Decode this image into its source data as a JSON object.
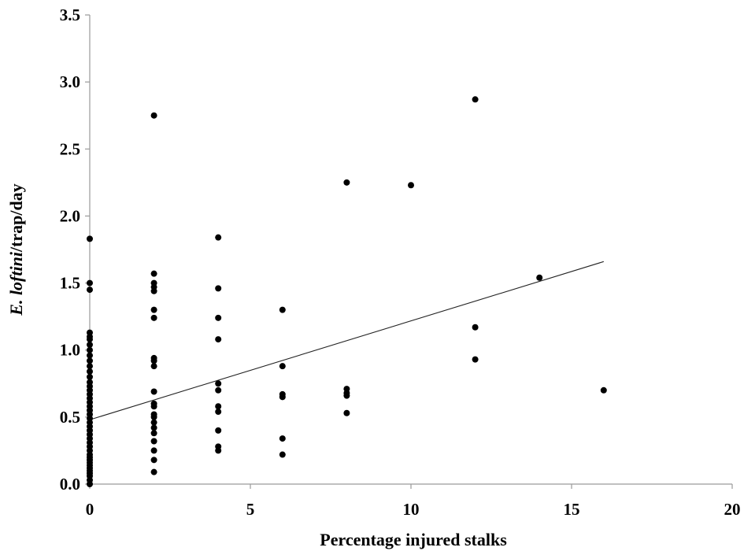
{
  "chart_data": {
    "type": "scatter",
    "title": "",
    "xlabel": "Percentage injured stalks",
    "ylabel": {
      "italic": "E. loftini",
      "rest": "/trap/day"
    },
    "xlim": [
      0,
      20
    ],
    "ylim": [
      0,
      3.5
    ],
    "x_ticks": [
      "0",
      "5",
      "10",
      "15",
      "20"
    ],
    "y_ticks": [
      "0.0",
      "0.5",
      "1.0",
      "1.5",
      "2.0",
      "2.5",
      "3.0",
      "3.5"
    ],
    "grid": false,
    "legend": "none",
    "marker_color": "#000000",
    "trendline": {
      "x": [
        0,
        16
      ],
      "y": [
        0.48,
        1.66
      ]
    },
    "points": [
      {
        "x": 0,
        "y": 0.0
      },
      {
        "x": 0,
        "y": 0.03
      },
      {
        "x": 0,
        "y": 0.06
      },
      {
        "x": 0,
        "y": 0.08
      },
      {
        "x": 0,
        "y": 0.1
      },
      {
        "x": 0,
        "y": 0.12
      },
      {
        "x": 0,
        "y": 0.14
      },
      {
        "x": 0,
        "y": 0.16
      },
      {
        "x": 0,
        "y": 0.18
      },
      {
        "x": 0,
        "y": 0.2
      },
      {
        "x": 0,
        "y": 0.22
      },
      {
        "x": 0,
        "y": 0.25
      },
      {
        "x": 0,
        "y": 0.28
      },
      {
        "x": 0,
        "y": 0.31
      },
      {
        "x": 0,
        "y": 0.34
      },
      {
        "x": 0,
        "y": 0.37
      },
      {
        "x": 0,
        "y": 0.4
      },
      {
        "x": 0,
        "y": 0.43
      },
      {
        "x": 0,
        "y": 0.46
      },
      {
        "x": 0,
        "y": 0.49
      },
      {
        "x": 0,
        "y": 0.52
      },
      {
        "x": 0,
        "y": 0.55
      },
      {
        "x": 0,
        "y": 0.58
      },
      {
        "x": 0,
        "y": 0.61
      },
      {
        "x": 0,
        "y": 0.64
      },
      {
        "x": 0,
        "y": 0.67
      },
      {
        "x": 0,
        "y": 0.7
      },
      {
        "x": 0,
        "y": 0.73
      },
      {
        "x": 0,
        "y": 0.76
      },
      {
        "x": 0,
        "y": 0.8
      },
      {
        "x": 0,
        "y": 0.84
      },
      {
        "x": 0,
        "y": 0.88
      },
      {
        "x": 0,
        "y": 0.92
      },
      {
        "x": 0,
        "y": 0.96
      },
      {
        "x": 0,
        "y": 1.0
      },
      {
        "x": 0,
        "y": 1.04
      },
      {
        "x": 0,
        "y": 1.08
      },
      {
        "x": 0,
        "y": 1.1
      },
      {
        "x": 0,
        "y": 1.13
      },
      {
        "x": 0,
        "y": 1.45
      },
      {
        "x": 0,
        "y": 1.5
      },
      {
        "x": 0,
        "y": 1.83
      },
      {
        "x": 2,
        "y": 0.09
      },
      {
        "x": 2,
        "y": 0.18
      },
      {
        "x": 2,
        "y": 0.25
      },
      {
        "x": 2,
        "y": 0.32
      },
      {
        "x": 2,
        "y": 0.38
      },
      {
        "x": 2,
        "y": 0.42
      },
      {
        "x": 2,
        "y": 0.46
      },
      {
        "x": 2,
        "y": 0.5
      },
      {
        "x": 2,
        "y": 0.52
      },
      {
        "x": 2,
        "y": 0.58
      },
      {
        "x": 2,
        "y": 0.6
      },
      {
        "x": 2,
        "y": 0.69
      },
      {
        "x": 2,
        "y": 0.88
      },
      {
        "x": 2,
        "y": 0.92
      },
      {
        "x": 2,
        "y": 0.94
      },
      {
        "x": 2,
        "y": 1.24
      },
      {
        "x": 2,
        "y": 1.3
      },
      {
        "x": 2,
        "y": 1.44
      },
      {
        "x": 2,
        "y": 1.47
      },
      {
        "x": 2,
        "y": 1.5
      },
      {
        "x": 2,
        "y": 1.57
      },
      {
        "x": 2,
        "y": 2.75
      },
      {
        "x": 4,
        "y": 0.25
      },
      {
        "x": 4,
        "y": 0.28
      },
      {
        "x": 4,
        "y": 0.4
      },
      {
        "x": 4,
        "y": 0.54
      },
      {
        "x": 4,
        "y": 0.58
      },
      {
        "x": 4,
        "y": 0.7
      },
      {
        "x": 4,
        "y": 0.75
      },
      {
        "x": 4,
        "y": 1.08
      },
      {
        "x": 4,
        "y": 1.24
      },
      {
        "x": 4,
        "y": 1.46
      },
      {
        "x": 4,
        "y": 1.84
      },
      {
        "x": 6,
        "y": 0.22
      },
      {
        "x": 6,
        "y": 0.34
      },
      {
        "x": 6,
        "y": 0.65
      },
      {
        "x": 6,
        "y": 0.67
      },
      {
        "x": 6,
        "y": 0.88
      },
      {
        "x": 6,
        "y": 1.3
      },
      {
        "x": 8,
        "y": 0.53
      },
      {
        "x": 8,
        "y": 0.66
      },
      {
        "x": 8,
        "y": 0.68
      },
      {
        "x": 8,
        "y": 0.71
      },
      {
        "x": 8,
        "y": 2.25
      },
      {
        "x": 10,
        "y": 2.23
      },
      {
        "x": 12,
        "y": 0.93
      },
      {
        "x": 12,
        "y": 1.17
      },
      {
        "x": 12,
        "y": 2.87
      },
      {
        "x": 14,
        "y": 1.54
      },
      {
        "x": 16,
        "y": 0.7
      }
    ]
  }
}
